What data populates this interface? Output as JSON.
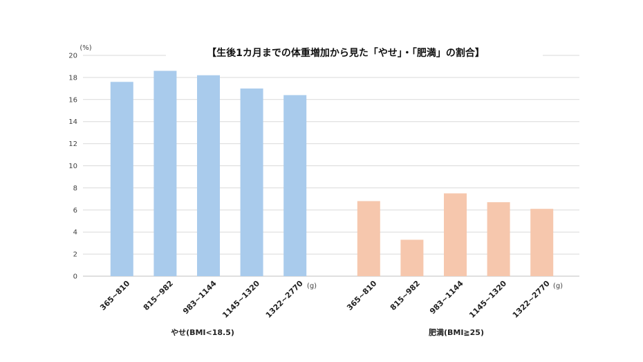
{
  "chart_data": {
    "type": "bar",
    "title": "【生後1カ月までの体重増加から見た「やせ」・「肥満」の割合】",
    "y_unit": "(%)",
    "x_unit": "(g)",
    "ylim": [
      0,
      20
    ],
    "yticks": [
      0,
      2,
      4,
      6,
      8,
      10,
      12,
      14,
      16,
      18,
      20
    ],
    "grid": true,
    "groups": [
      {
        "name": "やせ(BMI<18.5)",
        "color": "#a9cbec",
        "categories": [
          "365~810",
          "815~982",
          "983~1144",
          "1145~1320",
          "1322~2770"
        ],
        "values": [
          17.6,
          18.6,
          18.2,
          17.0,
          16.4
        ]
      },
      {
        "name": "肥満(BMI≧25)",
        "color": "#f6c7ad",
        "categories": [
          "365~810",
          "815~982",
          "983~1144",
          "1145~1320",
          "1322~2770"
        ],
        "values": [
          6.8,
          3.3,
          7.5,
          6.7,
          6.1
        ]
      }
    ]
  }
}
